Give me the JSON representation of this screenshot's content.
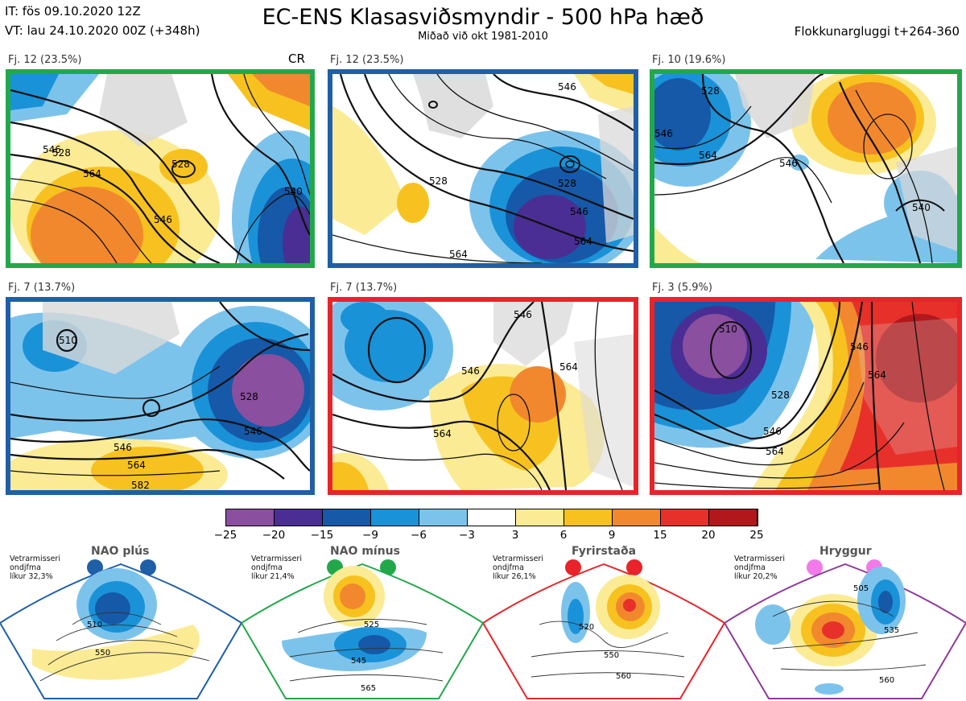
{
  "header": {
    "it_line": "IT: fös 09.10.2020 12Z",
    "vt_line": "VT: lau 24.10.2020 00Z  (+348h)",
    "title": "EC-ENS Klasasviðsmyndir - 500 hPa hæð",
    "subtitle": "Miðað við okt 1981-2010",
    "window": "Flokkunargluggi t+264-360"
  },
  "panels": [
    {
      "label": "Fj. 12 (23.5%)",
      "border_color": "#22a84a",
      "marker": "CR",
      "contours": [
        "528",
        "546",
        "564",
        "546",
        "540",
        "528"
      ]
    },
    {
      "label": "Fj. 12 (23.5%)",
      "border_color": "#1f5fa8",
      "contours": [
        "546",
        "528",
        "528",
        "546",
        "564",
        "564"
      ]
    },
    {
      "label": "Fj. 10 (19.6%)",
      "border_color": "#22a84a",
      "contours": [
        "528",
        "546",
        "564",
        "546",
        "540"
      ]
    },
    {
      "label": "Fj. 7 (13.7%)",
      "border_color": "#1f5fa8",
      "contours": [
        "510",
        "528",
        "546",
        "564",
        "546",
        "582"
      ]
    },
    {
      "label": "Fj. 7 (13.7%)",
      "border_color": "#e8242a",
      "contours": [
        "546",
        "564",
        "546",
        "564"
      ]
    },
    {
      "label": "Fj. 3 (5.9%)",
      "border_color": "#e8242a",
      "contours": [
        "510",
        "528",
        "546",
        "564",
        "546",
        "564"
      ]
    }
  ],
  "colorbar": {
    "colors": [
      "#8b4fa0",
      "#4a2e93",
      "#1659a8",
      "#1a92d8",
      "#7cc3ec",
      "#ffffff",
      "#fbeb94",
      "#f7c21f",
      "#f2882e",
      "#e8302a",
      "#b2181b"
    ],
    "ticks": [
      "−25",
      "−20",
      "−15",
      "−9",
      "−6",
      "−3",
      "3",
      "6",
      "9",
      "15",
      "20",
      "25"
    ]
  },
  "regimes": [
    {
      "name": "NAO plús",
      "note_lines": [
        "Vetrarmisseri",
        "ondjfma",
        "líkur 32,3%"
      ],
      "color": "#1f5fa8",
      "contours": [
        "510",
        "550"
      ]
    },
    {
      "name": "NAO mínus",
      "note_lines": [
        "Vetrarmisseri",
        "ondjfma",
        "líkur 21,4%"
      ],
      "color": "#22a84a",
      "contours": [
        "525",
        "545",
        "565"
      ]
    },
    {
      "name": "Fyrirstaða",
      "note_lines": [
        "Vetrarmisseri",
        "ondjfma",
        "líkur 26,1%"
      ],
      "color": "#e8242a",
      "contours": [
        "520",
        "550",
        "560"
      ]
    },
    {
      "name": "Hryggur",
      "note_lines": [
        "Vetrarmisseri",
        "ondjfma",
        "líkur 20,2%"
      ],
      "color": "#8e3a9a",
      "contours": [
        "505",
        "535",
        "560"
      ]
    }
  ]
}
